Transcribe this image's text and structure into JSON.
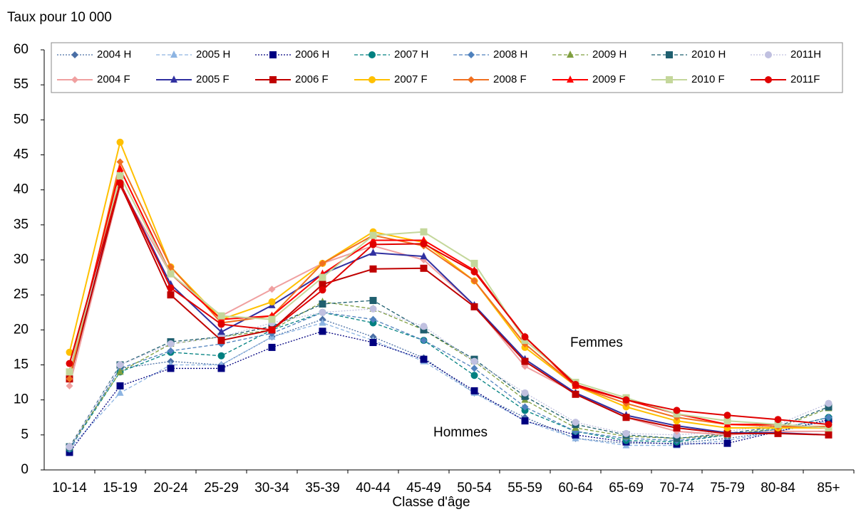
{
  "chart_data": {
    "type": "line",
    "y_label": "Taux pour 10 000",
    "x_label": "Classe d'âge",
    "annotations": [
      "Femmes",
      "Hommes"
    ],
    "categories": [
      "10-14",
      "15-19",
      "20-24",
      "25-29",
      "30-34",
      "35-39",
      "40-44",
      "45-49",
      "50-54",
      "55-59",
      "60-64",
      "65-69",
      "70-74",
      "75-79",
      "80-84",
      "85+"
    ],
    "ylim": [
      0,
      60
    ],
    "yticks": [
      0,
      5,
      10,
      15,
      20,
      25,
      30,
      35,
      40,
      45,
      50,
      55,
      60
    ],
    "grid": false,
    "legend": "top",
    "series": [
      {
        "name": "2004 H",
        "color": "#4a6fa5",
        "marker": "diamond",
        "dash": "dotted",
        "values": [
          3,
          14.5,
          15.5,
          15,
          19,
          21.5,
          19,
          16,
          11,
          7.5,
          4.5,
          3.8,
          3.8,
          4.5,
          5.5,
          7
        ]
      },
      {
        "name": "2005 H",
        "color": "#8db4e2",
        "marker": "triangle",
        "dash": "dashed",
        "values": [
          3,
          11,
          15,
          15,
          19,
          21,
          18.5,
          15.5,
          11,
          7,
          4.5,
          3.5,
          3.5,
          4.2,
          5.5,
          7
        ]
      },
      {
        "name": "2006 H",
        "color": "#000080",
        "marker": "square",
        "dash": "dotted",
        "values": [
          2.5,
          12,
          14.5,
          14.5,
          17.5,
          19.8,
          18.2,
          15.8,
          11.3,
          7,
          5,
          4,
          3.7,
          3.8,
          5.5,
          7.2
        ]
      },
      {
        "name": "2007 H",
        "color": "#008080",
        "marker": "circle",
        "dash": "dashed",
        "values": [
          3,
          14,
          16.8,
          16.3,
          20,
          22.5,
          21,
          18.5,
          13.5,
          8.5,
          5.5,
          4.2,
          4,
          5,
          5.8,
          7.5
        ]
      },
      {
        "name": "2008 H",
        "color": "#4f81bd",
        "marker": "diamond",
        "dash": "dashed",
        "values": [
          3,
          14.5,
          17,
          18,
          19.5,
          22.5,
          21.5,
          18.5,
          14.5,
          9,
          5.5,
          4.5,
          4.2,
          5,
          5.8,
          7.5
        ]
      },
      {
        "name": "2009 H",
        "color": "#7f9f3f",
        "marker": "triangle",
        "dash": "dashed",
        "values": [
          3.3,
          14,
          18,
          19,
          20,
          24,
          23,
          20,
          15.5,
          10,
          6,
          4.8,
          4.5,
          5,
          6,
          8.8
        ]
      },
      {
        "name": "2010 H",
        "color": "#1f5f6f",
        "marker": "square",
        "dash": "dashed",
        "values": [
          3.3,
          15,
          18.3,
          19,
          20.5,
          23.7,
          24.2,
          20,
          15.8,
          10.5,
          6.5,
          5,
          4.5,
          5.2,
          6.2,
          9
        ]
      },
      {
        "name": "2011H",
        "color": "#c0c0e0",
        "marker": "circle",
        "dash": "dotted",
        "values": [
          3.3,
          15,
          18,
          19,
          21,
          22.5,
          23,
          20.5,
          15.5,
          11,
          6.8,
          5.2,
          5,
          5.5,
          6.5,
          9.5
        ]
      },
      {
        "name": "2004 F",
        "color": "#f0a0a0",
        "marker": "diamond",
        "dash": "solid",
        "values": [
          12,
          40.5,
          28,
          22,
          25.8,
          29.5,
          32,
          30,
          23.5,
          14.8,
          11,
          7.5,
          5.5,
          5,
          5.5,
          5.5
        ]
      },
      {
        "name": "2005 F",
        "color": "#3030a0",
        "marker": "triangle",
        "dash": "solid",
        "values": [
          13,
          41,
          26.5,
          19.7,
          23.5,
          28,
          31,
          30.5,
          23.5,
          15.8,
          11,
          7.8,
          6.3,
          5.3,
          5.3,
          5
        ]
      },
      {
        "name": "2006 F",
        "color": "#c00000",
        "marker": "square",
        "dash": "solid",
        "values": [
          13,
          40.8,
          25,
          18.5,
          20,
          26.5,
          28.7,
          28.8,
          23.3,
          15.5,
          10.8,
          7.5,
          6,
          5.2,
          5.2,
          5
        ]
      },
      {
        "name": "2007 F",
        "color": "#ffc000",
        "marker": "circle",
        "dash": "solid",
        "values": [
          16.8,
          46.8,
          29,
          21.5,
          24,
          29.5,
          34,
          32.5,
          27,
          17.5,
          12,
          9,
          7,
          6,
          6,
          6
        ]
      },
      {
        "name": "2008 F",
        "color": "#f07020",
        "marker": "diamond",
        "dash": "solid",
        "values": [
          13,
          44,
          29,
          21,
          22,
          29.5,
          33.5,
          32,
          27,
          18,
          12,
          9.5,
          7.5,
          6.5,
          6.2,
          6.2
        ]
      },
      {
        "name": "2009 F",
        "color": "#ff0000",
        "marker": "triangle",
        "dash": "solid",
        "values": [
          14,
          43,
          28,
          21.5,
          22,
          28,
          32.8,
          32.8,
          28.5,
          19,
          12,
          10,
          8,
          6.5,
          6.5,
          6
        ]
      },
      {
        "name": "2010 F",
        "color": "#c4d79b",
        "marker": "square",
        "dash": "solid",
        "values": [
          14,
          42,
          28,
          22,
          21.5,
          27.5,
          33.5,
          34,
          29.5,
          18.5,
          12.5,
          10.3,
          8,
          7,
          6.5,
          6
        ]
      },
      {
        "name": "2011F",
        "color": "#e00000",
        "marker": "circle",
        "dash": "solid",
        "values": [
          15.2,
          41,
          26,
          20.8,
          20,
          25.7,
          32.2,
          32.3,
          28.3,
          19,
          12.2,
          10,
          8.5,
          7.8,
          7.2,
          6.5
        ]
      }
    ]
  }
}
